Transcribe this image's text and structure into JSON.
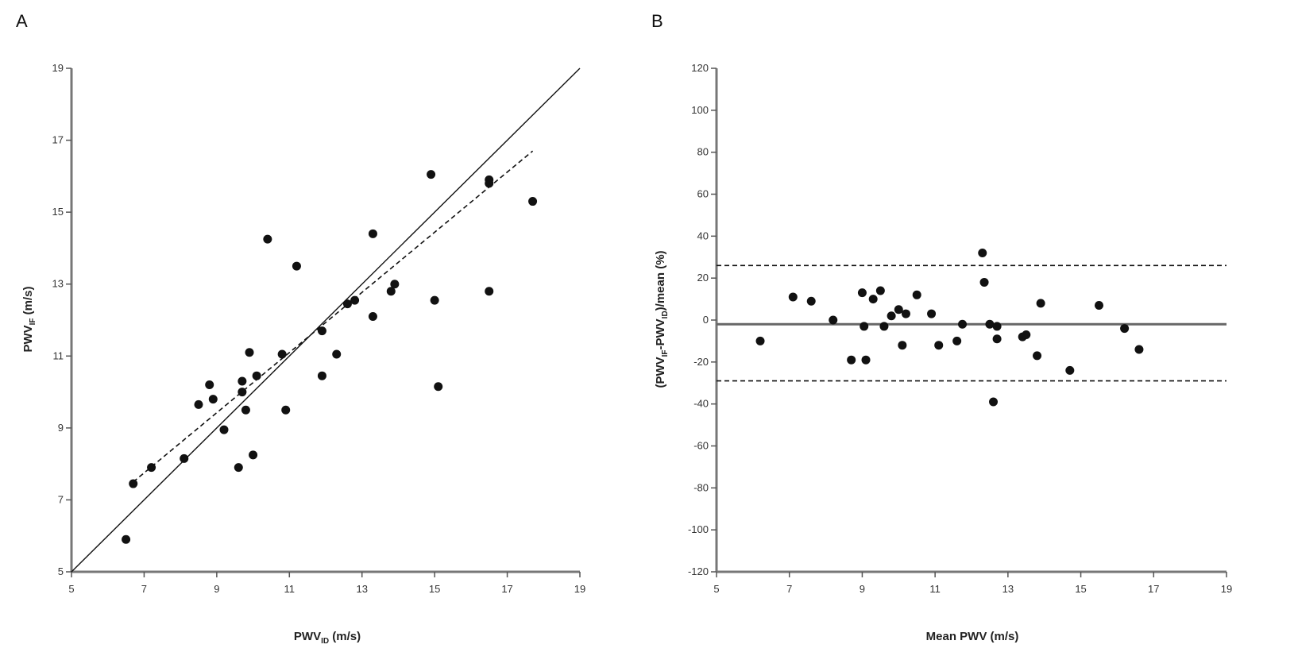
{
  "figure": {
    "panel_a_letter": "A",
    "panel_b_letter": "B"
  },
  "chart_data": [
    {
      "type": "scatter",
      "title": "",
      "panel": "A",
      "xlabel_main": "PWV",
      "xlabel_sub": "ID",
      "xlabel_unit": " (m/s)",
      "ylabel_main": "PWV",
      "ylabel_sub": "IF",
      "ylabel_unit": " (m/s)",
      "xlim": [
        5,
        19
      ],
      "ylim": [
        5,
        19
      ],
      "xticks": [
        5,
        7,
        9,
        11,
        13,
        15,
        17,
        19
      ],
      "yticks": [
        5,
        7,
        9,
        11,
        13,
        15,
        17,
        19
      ],
      "grid": false,
      "points": [
        {
          "x": 6.5,
          "y": 5.9
        },
        {
          "x": 6.7,
          "y": 7.45
        },
        {
          "x": 7.2,
          "y": 7.9
        },
        {
          "x": 8.1,
          "y": 8.15
        },
        {
          "x": 8.5,
          "y": 9.65
        },
        {
          "x": 8.8,
          "y": 10.2
        },
        {
          "x": 8.9,
          "y": 9.8
        },
        {
          "x": 9.2,
          "y": 8.95
        },
        {
          "x": 9.6,
          "y": 7.9
        },
        {
          "x": 9.7,
          "y": 10.3
        },
        {
          "x": 9.7,
          "y": 10.0
        },
        {
          "x": 9.8,
          "y": 9.5
        },
        {
          "x": 9.9,
          "y": 11.1
        },
        {
          "x": 10.0,
          "y": 8.25
        },
        {
          "x": 10.1,
          "y": 10.45
        },
        {
          "x": 10.4,
          "y": 14.25
        },
        {
          "x": 10.8,
          "y": 11.05
        },
        {
          "x": 10.9,
          "y": 9.5
        },
        {
          "x": 11.2,
          "y": 13.5
        },
        {
          "x": 11.9,
          "y": 11.7
        },
        {
          "x": 11.9,
          "y": 10.45
        },
        {
          "x": 12.3,
          "y": 11.05
        },
        {
          "x": 12.6,
          "y": 12.45
        },
        {
          "x": 12.8,
          "y": 12.55
        },
        {
          "x": 13.3,
          "y": 14.4
        },
        {
          "x": 13.3,
          "y": 12.1
        },
        {
          "x": 13.8,
          "y": 12.8
        },
        {
          "x": 13.9,
          "y": 13.0
        },
        {
          "x": 14.9,
          "y": 16.05
        },
        {
          "x": 15.0,
          "y": 12.55
        },
        {
          "x": 15.1,
          "y": 10.15
        },
        {
          "x": 16.5,
          "y": 15.9
        },
        {
          "x": 16.5,
          "y": 15.8
        },
        {
          "x": 16.5,
          "y": 12.8
        },
        {
          "x": 17.7,
          "y": 15.3
        }
      ],
      "lines": [
        {
          "kind": "identity",
          "style": "solid",
          "x": [
            5,
            19
          ],
          "y": [
            5,
            19
          ]
        },
        {
          "kind": "regression",
          "style": "dashed",
          "x": [
            6.7,
            17.7
          ],
          "y": [
            7.5,
            16.7
          ]
        }
      ]
    },
    {
      "type": "scatter",
      "title": "",
      "panel": "B",
      "xlabel": "Mean PWV (m/s)",
      "ylabel_main": "(PWV",
      "ylabel_sub1": "IF",
      "ylabel_mid": "-PWV",
      "ylabel_sub2": "ID",
      "ylabel_end": ")/mean (%)",
      "xlim": [
        5,
        19
      ],
      "ylim": [
        -120,
        120
      ],
      "xticks": [
        5,
        7,
        9,
        11,
        13,
        15,
        17,
        19
      ],
      "yticks": [
        -120,
        -100,
        -80,
        -60,
        -40,
        -20,
        0,
        20,
        40,
        60,
        80,
        100,
        120
      ],
      "grid": false,
      "points": [
        {
          "x": 6.2,
          "y": -10
        },
        {
          "x": 7.1,
          "y": 11
        },
        {
          "x": 7.6,
          "y": 9
        },
        {
          "x": 8.2,
          "y": 0
        },
        {
          "x": 8.7,
          "y": -19
        },
        {
          "x": 9.0,
          "y": 13
        },
        {
          "x": 9.05,
          "y": -3
        },
        {
          "x": 9.1,
          "y": -19
        },
        {
          "x": 9.3,
          "y": 10
        },
        {
          "x": 9.5,
          "y": 14
        },
        {
          "x": 9.6,
          "y": -3
        },
        {
          "x": 9.8,
          "y": 2
        },
        {
          "x": 10.0,
          "y": 5
        },
        {
          "x": 10.1,
          "y": -12
        },
        {
          "x": 10.2,
          "y": 3
        },
        {
          "x": 10.5,
          "y": 12
        },
        {
          "x": 10.9,
          "y": 3
        },
        {
          "x": 11.1,
          "y": -12
        },
        {
          "x": 11.6,
          "y": -10
        },
        {
          "x": 11.75,
          "y": -2
        },
        {
          "x": 12.3,
          "y": 32
        },
        {
          "x": 12.35,
          "y": 18
        },
        {
          "x": 12.5,
          "y": -2
        },
        {
          "x": 12.6,
          "y": -39
        },
        {
          "x": 12.7,
          "y": -3
        },
        {
          "x": 12.7,
          "y": -9
        },
        {
          "x": 13.4,
          "y": -8
        },
        {
          "x": 13.5,
          "y": -7
        },
        {
          "x": 13.8,
          "y": -17
        },
        {
          "x": 13.9,
          "y": 8
        },
        {
          "x": 14.7,
          "y": -24
        },
        {
          "x": 15.5,
          "y": 7
        },
        {
          "x": 16.2,
          "y": -4
        },
        {
          "x": 16.6,
          "y": -14
        }
      ],
      "lines": [
        {
          "kind": "mean",
          "style": "solid",
          "y": -2
        },
        {
          "kind": "upper_loa",
          "style": "dashed",
          "y": 26
        },
        {
          "kind": "lower_loa",
          "style": "dashed",
          "y": -29
        }
      ]
    }
  ]
}
